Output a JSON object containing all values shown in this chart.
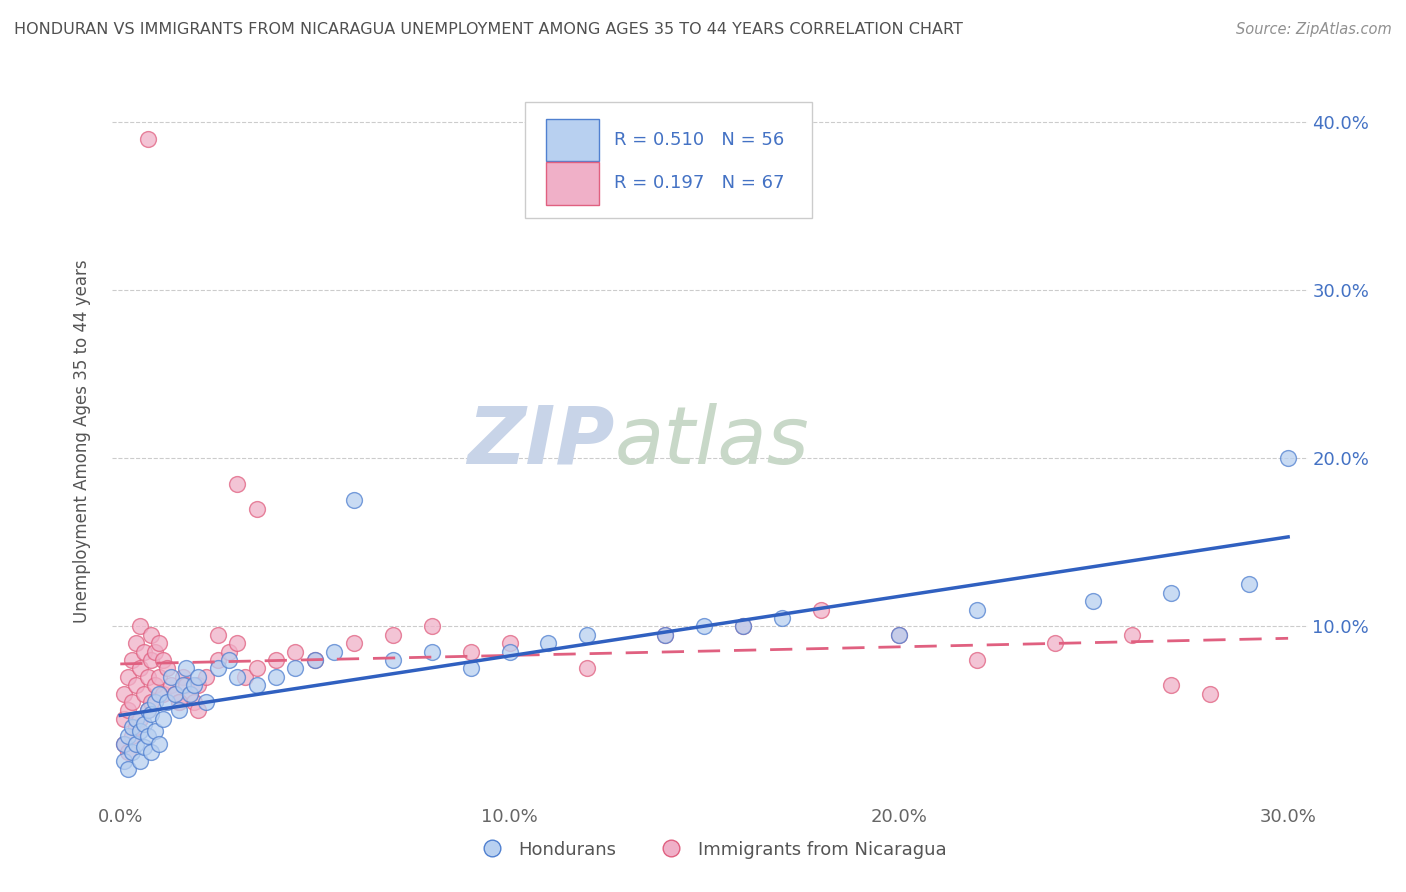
{
  "title": "HONDURAN VS IMMIGRANTS FROM NICARAGUA UNEMPLOYMENT AMONG AGES 35 TO 44 YEARS CORRELATION CHART",
  "source": "Source: ZipAtlas.com",
  "ylabel": "Unemployment Among Ages 35 to 44 years",
  "xlim": [
    -0.002,
    0.305
  ],
  "ylim": [
    -0.005,
    0.425
  ],
  "xticks": [
    0.0,
    0.1,
    0.2,
    0.3
  ],
  "xticklabels": [
    "0.0%",
    "10.0%",
    "20.0%",
    "30.0%"
  ],
  "yticks": [
    0.1,
    0.2,
    0.3,
    0.4
  ],
  "yticklabels": [
    "10.0%",
    "20.0%",
    "30.0%",
    "40.0%"
  ],
  "legend_labels": [
    "Hondurans",
    "Immigrants from Nicaragua"
  ],
  "R_honduran": 0.51,
  "N_honduran": 56,
  "R_nicaragua": 0.197,
  "N_nicaragua": 67,
  "blue_fill": "#b8d0f0",
  "pink_fill": "#f0b0c8",
  "blue_edge": "#5080d0",
  "pink_edge": "#e06080",
  "blue_line": "#3060c0",
  "pink_line": "#e06080",
  "title_color": "#505050",
  "source_color": "#909090",
  "legend_text_color": "#4472c4",
  "watermark_color_zip": "#c8d4e8",
  "watermark_color_atlas": "#c8d8c8",
  "background_color": "#ffffff",
  "grid_color": "#cccccc",
  "honduran_x": [
    0.001,
    0.001,
    0.002,
    0.002,
    0.003,
    0.003,
    0.004,
    0.004,
    0.005,
    0.005,
    0.006,
    0.006,
    0.007,
    0.007,
    0.008,
    0.008,
    0.009,
    0.009,
    0.01,
    0.01,
    0.011,
    0.012,
    0.013,
    0.014,
    0.015,
    0.016,
    0.017,
    0.018,
    0.019,
    0.02,
    0.022,
    0.025,
    0.028,
    0.03,
    0.035,
    0.04,
    0.045,
    0.05,
    0.055,
    0.06,
    0.07,
    0.08,
    0.09,
    0.1,
    0.11,
    0.12,
    0.14,
    0.15,
    0.16,
    0.17,
    0.2,
    0.22,
    0.25,
    0.27,
    0.29,
    0.3
  ],
  "honduran_y": [
    0.02,
    0.03,
    0.015,
    0.035,
    0.025,
    0.04,
    0.03,
    0.045,
    0.02,
    0.038,
    0.028,
    0.042,
    0.035,
    0.05,
    0.025,
    0.048,
    0.038,
    0.055,
    0.03,
    0.06,
    0.045,
    0.055,
    0.07,
    0.06,
    0.05,
    0.065,
    0.075,
    0.06,
    0.065,
    0.07,
    0.055,
    0.075,
    0.08,
    0.07,
    0.065,
    0.07,
    0.075,
    0.08,
    0.085,
    0.175,
    0.08,
    0.085,
    0.075,
    0.085,
    0.09,
    0.095,
    0.095,
    0.1,
    0.1,
    0.105,
    0.095,
    0.11,
    0.115,
    0.12,
    0.125,
    0.2
  ],
  "nicaragua_x": [
    0.001,
    0.001,
    0.001,
    0.002,
    0.002,
    0.002,
    0.003,
    0.003,
    0.003,
    0.004,
    0.004,
    0.004,
    0.005,
    0.005,
    0.005,
    0.006,
    0.006,
    0.007,
    0.007,
    0.007,
    0.008,
    0.008,
    0.008,
    0.009,
    0.009,
    0.01,
    0.01,
    0.011,
    0.011,
    0.012,
    0.013,
    0.014,
    0.015,
    0.016,
    0.017,
    0.018,
    0.019,
    0.02,
    0.022,
    0.025,
    0.028,
    0.03,
    0.032,
    0.035,
    0.04,
    0.045,
    0.05,
    0.06,
    0.07,
    0.08,
    0.09,
    0.1,
    0.12,
    0.14,
    0.16,
    0.18,
    0.2,
    0.22,
    0.24,
    0.26,
    0.27,
    0.28,
    0.03,
    0.025,
    0.02,
    0.015,
    0.035
  ],
  "nicaragua_y": [
    0.03,
    0.045,
    0.06,
    0.025,
    0.05,
    0.07,
    0.035,
    0.055,
    0.08,
    0.04,
    0.065,
    0.09,
    0.045,
    0.075,
    0.1,
    0.06,
    0.085,
    0.05,
    0.07,
    0.39,
    0.055,
    0.08,
    0.095,
    0.065,
    0.085,
    0.07,
    0.09,
    0.06,
    0.08,
    0.075,
    0.065,
    0.06,
    0.055,
    0.07,
    0.065,
    0.06,
    0.055,
    0.065,
    0.07,
    0.08,
    0.085,
    0.09,
    0.07,
    0.075,
    0.08,
    0.085,
    0.08,
    0.09,
    0.095,
    0.1,
    0.085,
    0.09,
    0.075,
    0.095,
    0.1,
    0.11,
    0.095,
    0.08,
    0.09,
    0.095,
    0.065,
    0.06,
    0.185,
    0.095,
    0.05,
    0.055,
    0.17
  ]
}
